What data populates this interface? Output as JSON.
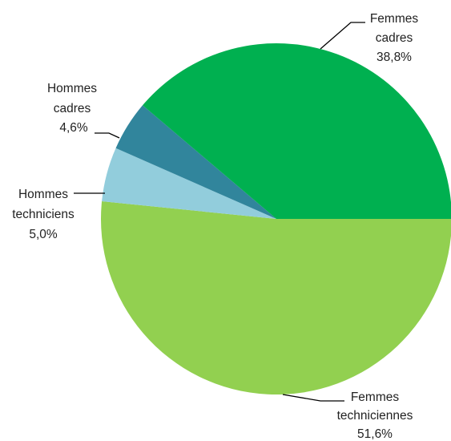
{
  "chart_data": {
    "type": "pie",
    "title": "",
    "legend": "none",
    "slices": [
      {
        "label_lines": [
          "Femmes",
          "techniciennes"
        ],
        "value_label": "51,6%",
        "value": 51.6,
        "color": "#92d050"
      },
      {
        "label_lines": [
          "Hommes",
          "techniciens"
        ],
        "value_label": "5,0%",
        "value": 5.0,
        "color": "#92cddc"
      },
      {
        "label_lines": [
          "Hommes",
          "cadres"
        ],
        "value_label": "4,6%",
        "value": 4.6,
        "color": "#31859c"
      },
      {
        "label_lines": [
          "Femmes",
          "cadres"
        ],
        "value_label": "38,8%",
        "value": 38.8,
        "color": "#00b050"
      }
    ]
  }
}
